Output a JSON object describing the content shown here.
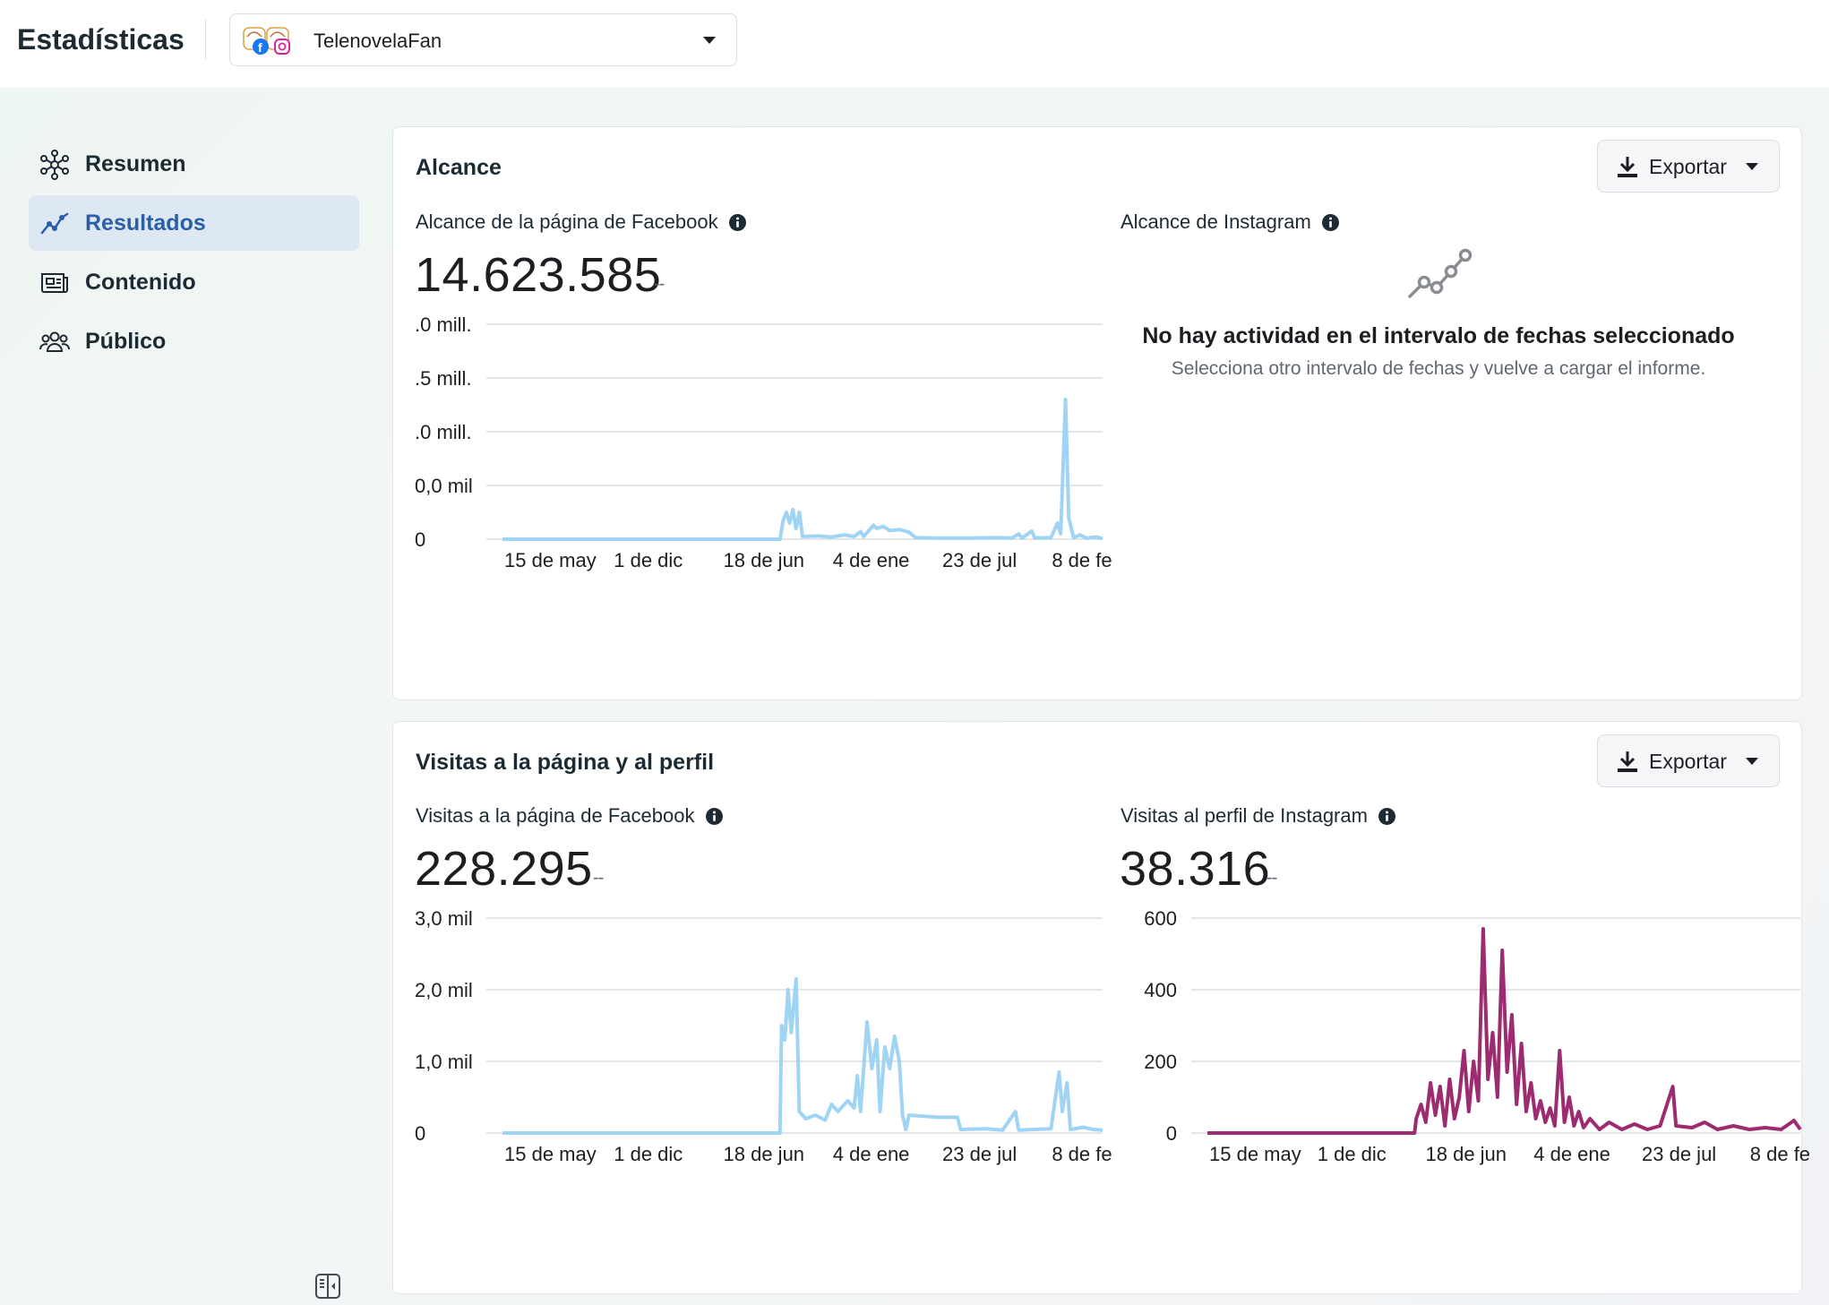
{
  "header": {
    "title": "Estadísticas",
    "account_name": "TelenovelaFan"
  },
  "sidebar": {
    "items": [
      {
        "label": "Resumen",
        "icon": "network-icon",
        "active": false
      },
      {
        "label": "Resultados",
        "icon": "trend-icon",
        "active": true
      },
      {
        "label": "Contenido",
        "icon": "content-icon",
        "active": false
      },
      {
        "label": "Público",
        "icon": "audience-icon",
        "active": false
      }
    ]
  },
  "colors": {
    "facebook_series": "#9fd4f5",
    "instagram_series": "#9c2c6f",
    "active_nav": "#2a5fa8",
    "active_nav_bg": "#dde8f3"
  },
  "reach_card": {
    "title": "Alcance",
    "export_label": "Exportar",
    "fb_label": "Alcance de la página de Facebook",
    "fb_value": "14.623.585",
    "fb_change": "--",
    "ig_label": "Alcance de Instagram",
    "empty_title": "No hay actividad en el intervalo de fechas seleccionado",
    "empty_sub": "Selecciona otro intervalo de fechas y vuelve a cargar el informe."
  },
  "visits_card": {
    "title": "Visitas a la página y al perfil",
    "export_label": "Exportar",
    "fb_label": "Visitas a la página de Facebook",
    "fb_value": "228.295",
    "fb_change": "--",
    "ig_label": "Visitas al perfil de Instagram",
    "ig_value": "38.316",
    "ig_change": "--"
  },
  "chart_data": [
    {
      "id": "fb_reach",
      "type": "line",
      "title": "Alcance de la página de Facebook",
      "y_ticks": [
        "0",
        "0,0 mil",
        ".0 mill.",
        ".5 mill.",
        ".0 mill."
      ],
      "x_ticks": [
        "15 de may",
        "1 de dic",
        "18 de jun",
        "4 de ene",
        "23 de jul",
        "8 de fe"
      ],
      "ylim": [
        0,
        4
      ],
      "color": "#9fd4f5",
      "series": [
        {
          "x": 0,
          "y": 0
        },
        {
          "x": 8.6,
          "y": 0
        },
        {
          "x": 8.7,
          "y": 0.35
        },
        {
          "x": 8.8,
          "y": 0.5
        },
        {
          "x": 8.9,
          "y": 0.3
        },
        {
          "x": 9.0,
          "y": 0.55
        },
        {
          "x": 9.1,
          "y": 0.2
        },
        {
          "x": 9.2,
          "y": 0.5
        },
        {
          "x": 9.3,
          "y": 0.05
        },
        {
          "x": 9.8,
          "y": 0.06
        },
        {
          "x": 10.2,
          "y": 0.04
        },
        {
          "x": 10.6,
          "y": 0.08
        },
        {
          "x": 10.9,
          "y": 0.05
        },
        {
          "x": 11.1,
          "y": 0.14
        },
        {
          "x": 11.2,
          "y": 0.05
        },
        {
          "x": 11.5,
          "y": 0.26
        },
        {
          "x": 11.6,
          "y": 0.2
        },
        {
          "x": 11.8,
          "y": 0.24
        },
        {
          "x": 12.0,
          "y": 0.16
        },
        {
          "x": 12.3,
          "y": 0.18
        },
        {
          "x": 12.6,
          "y": 0.13
        },
        {
          "x": 12.8,
          "y": 0.03
        },
        {
          "x": 13.5,
          "y": 0.02
        },
        {
          "x": 14.5,
          "y": 0.02
        },
        {
          "x": 15.3,
          "y": 0.03
        },
        {
          "x": 15.8,
          "y": 0.02
        },
        {
          "x": 16.0,
          "y": 0.1
        },
        {
          "x": 16.1,
          "y": 0.02
        },
        {
          "x": 16.4,
          "y": 0.15
        },
        {
          "x": 16.5,
          "y": 0.02
        },
        {
          "x": 17.0,
          "y": 0.03
        },
        {
          "x": 17.2,
          "y": 0.3
        },
        {
          "x": 17.3,
          "y": 0.1
        },
        {
          "x": 17.45,
          "y": 2.6
        },
        {
          "x": 17.55,
          "y": 0.4
        },
        {
          "x": 17.7,
          "y": 0.03
        },
        {
          "x": 17.9,
          "y": 0.08
        },
        {
          "x": 18.1,
          "y": 0.02
        },
        {
          "x": 18.4,
          "y": 0.04
        },
        {
          "x": 18.6,
          "y": 0.01
        }
      ],
      "x_max": 18.6
    },
    {
      "id": "fb_visits",
      "type": "line",
      "title": "Visitas a la página de Facebook",
      "y_ticks": [
        "0",
        "1,0 mil",
        "2,0 mil",
        "3,0 mil"
      ],
      "x_ticks": [
        "15 de may",
        "1 de dic",
        "18 de jun",
        "4 de ene",
        "23 de jul",
        "8 de fe"
      ],
      "ylim": [
        0,
        3
      ],
      "color": "#9fd4f5",
      "series": [
        {
          "x": 0,
          "y": 0
        },
        {
          "x": 8.6,
          "y": 0
        },
        {
          "x": 8.65,
          "y": 1.5
        },
        {
          "x": 8.75,
          "y": 1.3
        },
        {
          "x": 8.85,
          "y": 2.0
        },
        {
          "x": 8.95,
          "y": 1.4
        },
        {
          "x": 9.1,
          "y": 2.15
        },
        {
          "x": 9.2,
          "y": 0.3
        },
        {
          "x": 9.4,
          "y": 0.2
        },
        {
          "x": 9.7,
          "y": 0.25
        },
        {
          "x": 10.0,
          "y": 0.18
        },
        {
          "x": 10.2,
          "y": 0.4
        },
        {
          "x": 10.4,
          "y": 0.3
        },
        {
          "x": 10.7,
          "y": 0.45
        },
        {
          "x": 10.9,
          "y": 0.35
        },
        {
          "x": 11.0,
          "y": 0.8
        },
        {
          "x": 11.1,
          "y": 0.3
        },
        {
          "x": 11.3,
          "y": 1.55
        },
        {
          "x": 11.45,
          "y": 0.9
        },
        {
          "x": 11.6,
          "y": 1.3
        },
        {
          "x": 11.7,
          "y": 0.3
        },
        {
          "x": 11.85,
          "y": 1.2
        },
        {
          "x": 12.0,
          "y": 0.9
        },
        {
          "x": 12.15,
          "y": 1.35
        },
        {
          "x": 12.3,
          "y": 1.0
        },
        {
          "x": 12.4,
          "y": 0.25
        },
        {
          "x": 12.5,
          "y": 0.05
        },
        {
          "x": 12.6,
          "y": 0.25
        },
        {
          "x": 13.5,
          "y": 0.22
        },
        {
          "x": 14.1,
          "y": 0.22
        },
        {
          "x": 14.2,
          "y": 0.05
        },
        {
          "x": 15.0,
          "y": 0.06
        },
        {
          "x": 15.5,
          "y": 0.04
        },
        {
          "x": 15.9,
          "y": 0.3
        },
        {
          "x": 16.0,
          "y": 0.04
        },
        {
          "x": 16.5,
          "y": 0.05
        },
        {
          "x": 17.0,
          "y": 0.06
        },
        {
          "x": 17.25,
          "y": 0.85
        },
        {
          "x": 17.35,
          "y": 0.3
        },
        {
          "x": 17.5,
          "y": 0.7
        },
        {
          "x": 17.6,
          "y": 0.05
        },
        {
          "x": 18.0,
          "y": 0.08
        },
        {
          "x": 18.3,
          "y": 0.05
        },
        {
          "x": 18.6,
          "y": 0.04
        }
      ],
      "x_max": 18.6
    },
    {
      "id": "ig_visits",
      "type": "line",
      "title": "Visitas al perfil de Instagram",
      "y_ticks": [
        "0",
        "200",
        "400",
        "600"
      ],
      "x_ticks": [
        "15 de may",
        "1 de dic",
        "18 de jun",
        "4 de ene",
        "23 de jul",
        "8 de fe"
      ],
      "ylim": [
        0,
        600
      ],
      "color": "#9c2c6f",
      "series": [
        {
          "x": 0,
          "y": 0
        },
        {
          "x": 6.5,
          "y": 0
        },
        {
          "x": 6.55,
          "y": 40
        },
        {
          "x": 6.7,
          "y": 80
        },
        {
          "x": 6.85,
          "y": 30
        },
        {
          "x": 7.0,
          "y": 140
        },
        {
          "x": 7.15,
          "y": 50
        },
        {
          "x": 7.3,
          "y": 130
        },
        {
          "x": 7.45,
          "y": 20
        },
        {
          "x": 7.6,
          "y": 150
        },
        {
          "x": 7.75,
          "y": 40
        },
        {
          "x": 7.9,
          "y": 100
        },
        {
          "x": 8.05,
          "y": 230
        },
        {
          "x": 8.2,
          "y": 60
        },
        {
          "x": 8.35,
          "y": 200
        },
        {
          "x": 8.5,
          "y": 90
        },
        {
          "x": 8.65,
          "y": 570
        },
        {
          "x": 8.8,
          "y": 150
        },
        {
          "x": 8.95,
          "y": 280
        },
        {
          "x": 9.1,
          "y": 100
        },
        {
          "x": 9.25,
          "y": 510
        },
        {
          "x": 9.4,
          "y": 170
        },
        {
          "x": 9.55,
          "y": 330
        },
        {
          "x": 9.7,
          "y": 80
        },
        {
          "x": 9.85,
          "y": 250
        },
        {
          "x": 10.0,
          "y": 60
        },
        {
          "x": 10.15,
          "y": 140
        },
        {
          "x": 10.3,
          "y": 40
        },
        {
          "x": 10.45,
          "y": 90
        },
        {
          "x": 10.6,
          "y": 30
        },
        {
          "x": 10.75,
          "y": 70
        },
        {
          "x": 10.9,
          "y": 20
        },
        {
          "x": 11.05,
          "y": 230
        },
        {
          "x": 11.2,
          "y": 30
        },
        {
          "x": 11.35,
          "y": 100
        },
        {
          "x": 11.5,
          "y": 20
        },
        {
          "x": 11.65,
          "y": 60
        },
        {
          "x": 11.8,
          "y": 15
        },
        {
          "x": 12.0,
          "y": 40
        },
        {
          "x": 12.3,
          "y": 10
        },
        {
          "x": 12.6,
          "y": 30
        },
        {
          "x": 13.0,
          "y": 10
        },
        {
          "x": 13.4,
          "y": 25
        },
        {
          "x": 13.8,
          "y": 10
        },
        {
          "x": 14.2,
          "y": 20
        },
        {
          "x": 14.6,
          "y": 130
        },
        {
          "x": 14.7,
          "y": 20
        },
        {
          "x": 15.2,
          "y": 15
        },
        {
          "x": 15.6,
          "y": 30
        },
        {
          "x": 16.0,
          "y": 10
        },
        {
          "x": 16.5,
          "y": 20
        },
        {
          "x": 17.0,
          "y": 10
        },
        {
          "x": 17.5,
          "y": 15
        },
        {
          "x": 18.0,
          "y": 10
        },
        {
          "x": 18.4,
          "y": 35
        },
        {
          "x": 18.6,
          "y": 10
        }
      ],
      "x_max": 18.6
    }
  ]
}
